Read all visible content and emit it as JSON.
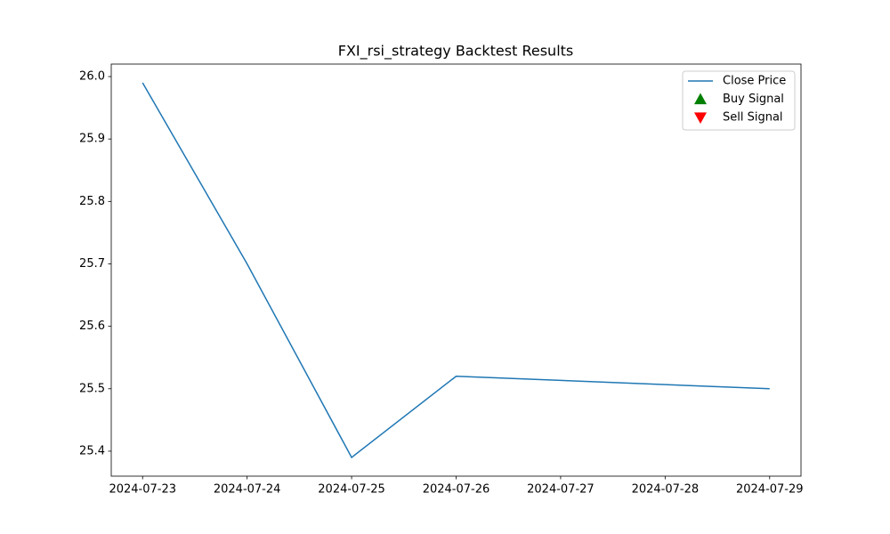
{
  "chart_data": {
    "type": "line",
    "title": "FXI_rsi_strategy Backtest Results",
    "x": [
      "2024-07-23",
      "2024-07-24",
      "2024-07-25",
      "2024-07-26",
      "2024-07-29"
    ],
    "series": [
      {
        "name": "Close Price",
        "color": "#1f77b4",
        "marker": "line",
        "values": [
          25.99,
          25.7,
          25.39,
          25.52,
          25.5
        ]
      },
      {
        "name": "Buy Signal",
        "color": "#008000",
        "marker": "^",
        "values": [
          null,
          null,
          null,
          null,
          null
        ]
      },
      {
        "name": "Sell Signal",
        "color": "#ff0000",
        "marker": "v",
        "values": [
          null,
          null,
          null,
          null,
          null
        ]
      }
    ],
    "xlim": [
      "2024-07-22T16:48",
      "2024-07-29T07:12"
    ],
    "xticks": [
      "2024-07-23",
      "2024-07-24",
      "2024-07-25",
      "2024-07-26",
      "2024-07-27",
      "2024-07-28",
      "2024-07-29"
    ],
    "ylim": [
      25.36,
      26.02
    ],
    "yticks": [
      {
        "value": 25.4,
        "label": "25.4"
      },
      {
        "value": 25.5,
        "label": "25.5"
      },
      {
        "value": 25.6,
        "label": "25.6"
      },
      {
        "value": 25.7,
        "label": "25.7"
      },
      {
        "value": 25.8,
        "label": "25.8"
      },
      {
        "value": 25.9,
        "label": "25.9"
      },
      {
        "value": 26.0,
        "label": "26.0"
      }
    ],
    "grid": false,
    "legend": "upper right"
  }
}
